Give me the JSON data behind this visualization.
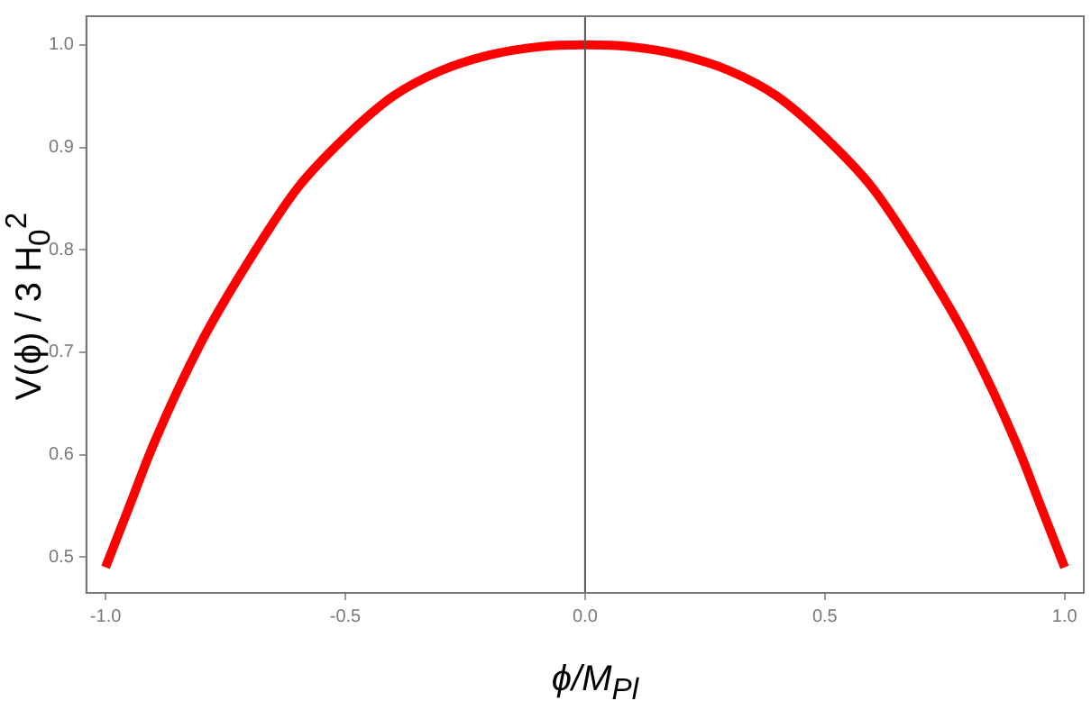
{
  "chart_data": {
    "type": "line",
    "xlabel": "ϕ/M$_{Pl}$",
    "ylabel": "V(ϕ) / 3 H$_{0}$$^{2}$",
    "series": [
      {
        "color": "#ff0000",
        "x": [
          -1,
          -0.95,
          -0.9,
          -0.8,
          -0.7,
          -0.6,
          -0.5,
          -0.4,
          -0.3,
          -0.2,
          -0.1,
          0,
          0.1,
          0.2,
          0.3,
          0.4,
          0.5,
          0.6,
          0.7,
          0.8,
          0.9,
          0.95,
          1
        ],
        "values": [
          0.49,
          0.55,
          0.61,
          0.71,
          0.79,
          0.86,
          0.91,
          0.95,
          0.975,
          0.99,
          0.998,
          1.0,
          0.998,
          0.99,
          0.975,
          0.95,
          0.91,
          0.86,
          0.79,
          0.71,
          0.61,
          0.55,
          0.49
        ]
      }
    ],
    "xlim": [
      -1.04,
      1.04
    ],
    "ylim": [
      0.465,
      1.028
    ],
    "xticks": [
      {
        "value": -1,
        "label": "-1.0"
      },
      -0.5,
      {
        "value": 0,
        "label": "0.0"
      },
      0.5,
      {
        "value": 1,
        "label": "1.0"
      }
    ],
    "yticks": [
      0.5,
      0.6,
      0.7,
      0.8,
      0.9,
      {
        "value": 1,
        "label": "1.0"
      }
    ],
    "ref_lines": [
      {
        "axis": "x",
        "value": 0,
        "color": "#555555"
      }
    ],
    "grid": false,
    "legend": false,
    "marker": "none",
    "line_style": "solid"
  }
}
